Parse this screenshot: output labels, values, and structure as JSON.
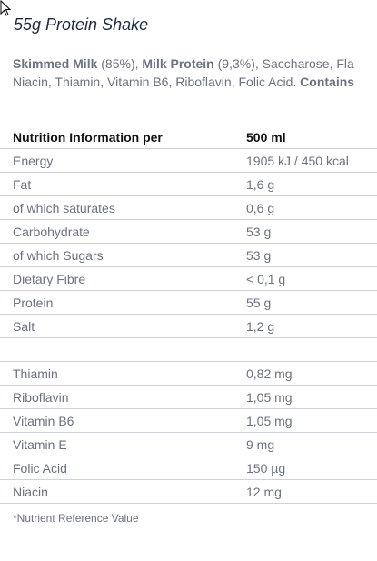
{
  "product": {
    "title": "55g Protein Shake"
  },
  "ingredients": {
    "line1": [
      {
        "text": "Skimmed Milk",
        "bold": true
      },
      {
        "text": " (85%), ",
        "bold": false
      },
      {
        "text": "Milk Protein",
        "bold": true
      },
      {
        "text": " (9,3%), Saccharose, Fla",
        "bold": false
      }
    ],
    "line2": [
      {
        "text": "Niacin, Thiamin, Vitamin B6, Riboflavin, Folic Acid. ",
        "bold": false
      },
      {
        "text": "Contains",
        "bold": true
      }
    ]
  },
  "nutrition": {
    "header": {
      "label": "Nutrition Information per",
      "value": "500 ml"
    },
    "rows": [
      {
        "label": "Energy",
        "value": "1905 kJ / 450 kcal"
      },
      {
        "label": "Fat",
        "value": "1,6 g"
      },
      {
        "label": "of which saturates",
        "value": "0,6 g"
      },
      {
        "label": "Carbohydrate",
        "value": "53 g"
      },
      {
        "label": "of which Sugars",
        "value": "53 g"
      },
      {
        "label": "Dietary Fibre",
        "value": "< 0,1 g"
      },
      {
        "label": "Protein",
        "value": "55 g"
      },
      {
        "label": "Salt",
        "value": "1,2 g"
      },
      {
        "label": "",
        "value": ""
      },
      {
        "label": "Thiamin",
        "value": "0,82 mg"
      },
      {
        "label": "Riboflavin",
        "value": "1,05 mg"
      },
      {
        "label": "Vitamin B6",
        "value": "1,05 mg"
      },
      {
        "label": "Vitamin E",
        "value": "9 mg"
      },
      {
        "label": "Folic Acid",
        "value": "150 µg"
      },
      {
        "label": "Niacin",
        "value": "12 mg"
      }
    ]
  },
  "footnote": "*Nutrient Reference Value",
  "icons": {
    "cursor": "mouse-pointer-icon"
  },
  "colors": {
    "title": "#1f2a44",
    "text": "#6b7280",
    "header": "#111111",
    "divider": "#cfd3d8"
  }
}
